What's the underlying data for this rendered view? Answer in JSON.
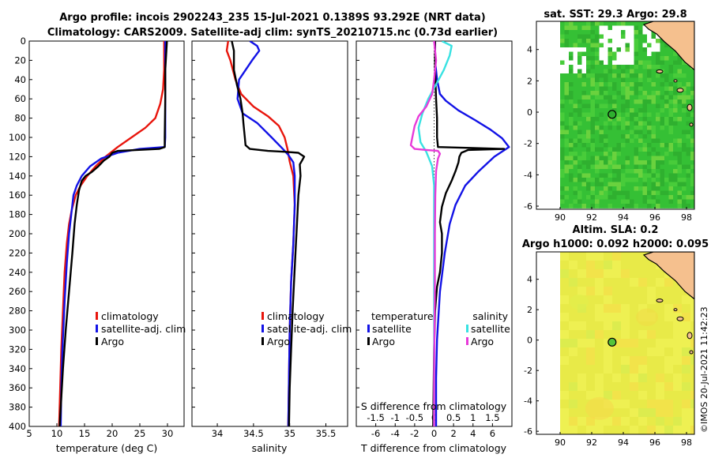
{
  "colors": {
    "climatology": "#e8150c",
    "satellite": "#1212e6",
    "argo": "#000000",
    "sal_satellite": "#38e2e2",
    "sal_argo": "#e83ad9",
    "land": "#f5c08e",
    "sst_field": "#3cc43c",
    "sla_field": "#ecee4a"
  },
  "header": {
    "line1": "Argo profile: incois 2902243_235 15-Jul-2021 0.1389S 93.292E (NRT data)",
    "line2": "Climatology: CARS2009. Satellite-adj clim: synTS_20210715.nc (0.73d earlier)"
  },
  "credit": "©IMOS 20-Jul-2021 11:42:23",
  "chart_data": [
    {
      "type": "line",
      "name": "temperature-profile",
      "xlabel": "temperature (deg C)",
      "ylabel": "",
      "xlim": [
        5,
        33
      ],
      "ylim": [
        400,
        0
      ],
      "xticks": [
        5,
        10,
        15,
        20,
        25,
        30
      ],
      "yticks": [
        0,
        20,
        40,
        60,
        80,
        100,
        120,
        140,
        160,
        180,
        200,
        220,
        240,
        260,
        280,
        300,
        320,
        340,
        360,
        380,
        400
      ],
      "legend": [
        "climatology",
        "satellite-adj. clim",
        "Argo"
      ],
      "legend_position": "lower-right",
      "series": [
        {
          "name": "climatology",
          "color_key": "climatology",
          "points": [
            [
              29.4,
              0
            ],
            [
              29.4,
              30
            ],
            [
              29.2,
              50
            ],
            [
              28.7,
              65
            ],
            [
              27.8,
              80
            ],
            [
              26,
              90
            ],
            [
              23.5,
              100
            ],
            [
              21,
              110
            ],
            [
              18.8,
              120
            ],
            [
              17,
              130
            ],
            [
              15.5,
              140
            ],
            [
              14.3,
              150
            ],
            [
              13.4,
              160
            ],
            [
              12.7,
              175
            ],
            [
              12.2,
              190
            ],
            [
              11.8,
              210
            ],
            [
              11.4,
              240
            ],
            [
              11.1,
              280
            ],
            [
              10.8,
              320
            ],
            [
              10.6,
              360
            ],
            [
              10.4,
              400
            ]
          ]
        },
        {
          "name": "satellite-adj. clim",
          "color_key": "satellite",
          "points": [
            [
              29.6,
              0
            ],
            [
              29.6,
              50
            ],
            [
              29.6,
              100
            ],
            [
              29.5,
              110
            ],
            [
              25,
              112
            ],
            [
              21,
              116
            ],
            [
              18,
              122
            ],
            [
              16,
              130
            ],
            [
              14.5,
              140
            ],
            [
              13.6,
              150
            ],
            [
              13,
              160
            ],
            [
              12.6,
              180
            ],
            [
              12.2,
              200
            ],
            [
              11.8,
              230
            ],
            [
              11.4,
              270
            ],
            [
              11,
              320
            ],
            [
              10.8,
              360
            ],
            [
              10.7,
              400
            ]
          ]
        },
        {
          "name": "Argo",
          "color_key": "argo",
          "points": [
            [
              29.9,
              0
            ],
            [
              29.8,
              10
            ],
            [
              29.6,
              30
            ],
            [
              29.6,
              60
            ],
            [
              29.5,
              100
            ],
            [
              29.5,
              110
            ],
            [
              28.5,
              112
            ],
            [
              24.5,
              113
            ],
            [
              21,
              114
            ],
            [
              20,
              116
            ],
            [
              19.5,
              120
            ],
            [
              18.5,
              124
            ],
            [
              17.5,
              130
            ],
            [
              16.3,
              136
            ],
            [
              15.2,
              140
            ],
            [
              14.5,
              145
            ],
            [
              14,
              155
            ],
            [
              13.6,
              170
            ],
            [
              13.2,
              190
            ],
            [
              12.8,
              220
            ],
            [
              12.2,
              260
            ],
            [
              11.6,
              300
            ],
            [
              11.1,
              340
            ],
            [
              10.8,
              370
            ],
            [
              10.5,
              400
            ]
          ]
        }
      ]
    },
    {
      "type": "line",
      "name": "salinity-profile",
      "xlabel": "salinity",
      "ylabel": "",
      "xlim": [
        33.65,
        35.8
      ],
      "ylim": [
        400,
        0
      ],
      "xticks": [
        34,
        34.5,
        35,
        35.5
      ],
      "legend": [
        "climatology",
        "satellite-adj. clim",
        "Argo"
      ],
      "legend_position": "lower-right",
      "series": [
        {
          "name": "climatology",
          "color_key": "climatology",
          "points": [
            [
              34.15,
              0
            ],
            [
              34.13,
              10
            ],
            [
              34.18,
              20
            ],
            [
              34.25,
              40
            ],
            [
              34.33,
              55
            ],
            [
              34.5,
              68
            ],
            [
              34.7,
              78
            ],
            [
              34.85,
              88
            ],
            [
              34.93,
              100
            ],
            [
              34.97,
              112
            ],
            [
              35,
              125
            ],
            [
              35.05,
              140
            ],
            [
              35.07,
              170
            ],
            [
              35.05,
              210
            ],
            [
              35.02,
              250
            ],
            [
              35,
              300
            ],
            [
              34.99,
              350
            ],
            [
              34.98,
              400
            ]
          ]
        },
        {
          "name": "satellite-adj. clim",
          "color_key": "satellite",
          "points": [
            [
              34.45,
              0
            ],
            [
              34.55,
              5
            ],
            [
              34.58,
              10
            ],
            [
              34.48,
              20
            ],
            [
              34.3,
              40
            ],
            [
              34.28,
              60
            ],
            [
              34.35,
              75
            ],
            [
              34.55,
              85
            ],
            [
              34.75,
              100
            ],
            [
              34.88,
              110
            ],
            [
              34.98,
              118
            ],
            [
              35.05,
              126
            ],
            [
              35.07,
              140
            ],
            [
              35.07,
              170
            ],
            [
              35.05,
              210
            ],
            [
              35.02,
              250
            ],
            [
              35,
              300
            ],
            [
              34.99,
              350
            ],
            [
              34.98,
              400
            ]
          ]
        },
        {
          "name": "Argo",
          "color_key": "argo",
          "points": [
            [
              34.2,
              0
            ],
            [
              34.23,
              10
            ],
            [
              34.23,
              30
            ],
            [
              34.27,
              45
            ],
            [
              34.32,
              60
            ],
            [
              34.35,
              75
            ],
            [
              34.36,
              85
            ],
            [
              34.38,
              100
            ],
            [
              34.39,
              108
            ],
            [
              34.45,
              112
            ],
            [
              34.7,
              114
            ],
            [
              34.95,
              115
            ],
            [
              35.12,
              116
            ],
            [
              35.2,
              120
            ],
            [
              35.17,
              124
            ],
            [
              35.14,
              128
            ],
            [
              35.15,
              140
            ],
            [
              35.12,
              160
            ],
            [
              35.1,
              190
            ],
            [
              35.08,
              220
            ],
            [
              35.06,
              250
            ],
            [
              35.04,
              280
            ],
            [
              35.02,
              320
            ],
            [
              35,
              360
            ],
            [
              34.99,
              400
            ]
          ]
        }
      ]
    },
    {
      "type": "line",
      "name": "difference-profile",
      "xlabel": "T difference from climatology",
      "x2label": "S difference from climatology",
      "xlim": [
        -8,
        8
      ],
      "x2lim": [
        -2,
        2
      ],
      "ylim": [
        400,
        0
      ],
      "xticks": [
        -6,
        -4,
        -2,
        0,
        2,
        4,
        6
      ],
      "x2ticks": [
        -1.5,
        -1,
        -0.5,
        0,
        0.5,
        1,
        1.5
      ],
      "legend_temperature_title": "temperature",
      "legend_salinity_title": "salinity",
      "legend_temperature": [
        "satellite",
        "Argo"
      ],
      "legend_salinity": [
        "satellite",
        "Argo"
      ],
      "zero_line": "dotted",
      "series": [
        {
          "name": "temperature satellite",
          "axis": "T",
          "color_key": "satellite",
          "points": [
            [
              0.1,
              0
            ],
            [
              0.1,
              20
            ],
            [
              0.3,
              40
            ],
            [
              0.6,
              55
            ],
            [
              1.2,
              62
            ],
            [
              2.5,
              72
            ],
            [
              4.2,
              82
            ],
            [
              5.8,
              92
            ],
            [
              7,
              101
            ],
            [
              7.7,
              110
            ],
            [
              6.2,
              120
            ],
            [
              4.6,
              135
            ],
            [
              3.2,
              150
            ],
            [
              2.2,
              170
            ],
            [
              1.6,
              190
            ],
            [
              1.1,
              220
            ],
            [
              0.6,
              260
            ],
            [
              0.3,
              310
            ],
            [
              0.2,
              350
            ],
            [
              0.2,
              400
            ]
          ]
        },
        {
          "name": "temperature Argo",
          "axis": "T",
          "color_key": "argo",
          "points": [
            [
              0.1,
              0
            ],
            [
              0.1,
              30
            ],
            [
              0.2,
              60
            ],
            [
              0.3,
              80
            ],
            [
              0.3,
              100
            ],
            [
              0.4,
              110
            ],
            [
              4,
              111
            ],
            [
              7.2,
              112
            ],
            [
              3.5,
              113
            ],
            [
              2.8,
              116
            ],
            [
              2.6,
              120
            ],
            [
              2.5,
              126
            ],
            [
              2.2,
              135
            ],
            [
              1.8,
              145
            ],
            [
              1.2,
              158
            ],
            [
              0.8,
              172
            ],
            [
              0.6,
              188
            ],
            [
              0.8,
              200
            ],
            [
              0.8,
              220
            ],
            [
              0.6,
              240
            ],
            [
              0.3,
              255
            ],
            [
              0.1,
              280
            ],
            [
              0,
              320
            ],
            [
              -0.05,
              360
            ],
            [
              -0.1,
              400
            ]
          ]
        },
        {
          "name": "salinity satellite",
          "axis": "S",
          "color_key": "sal_satellite",
          "points": [
            [
              0.2,
              0
            ],
            [
              0.45,
              5
            ],
            [
              0.4,
              15
            ],
            [
              0.25,
              30
            ],
            [
              0.05,
              45
            ],
            [
              -0.15,
              60
            ],
            [
              -0.3,
              75
            ],
            [
              -0.4,
              90
            ],
            [
              -0.35,
              105
            ],
            [
              -0.2,
              115
            ],
            [
              -0.05,
              130
            ],
            [
              0,
              150
            ],
            [
              0,
              200
            ],
            [
              0,
              300
            ],
            [
              0,
              400
            ]
          ]
        },
        {
          "name": "salinity Argo",
          "axis": "S",
          "color_key": "sal_argo",
          "points": [
            [
              0,
              0
            ],
            [
              0.05,
              20
            ],
            [
              0,
              40
            ],
            [
              -0.05,
              55
            ],
            [
              -0.2,
              68
            ],
            [
              -0.4,
              78
            ],
            [
              -0.5,
              88
            ],
            [
              -0.55,
              98
            ],
            [
              -0.6,
              108
            ],
            [
              -0.5,
              112
            ],
            [
              -0.2,
              113
            ],
            [
              0.1,
              114
            ],
            [
              0.15,
              117
            ],
            [
              0.1,
              122
            ],
            [
              0.05,
              135
            ],
            [
              0.03,
              160
            ],
            [
              0.02,
              200
            ],
            [
              0.02,
              250
            ],
            [
              0.01,
              300
            ],
            [
              0,
              350
            ],
            [
              0,
              400
            ]
          ]
        }
      ]
    },
    {
      "type": "heatmap",
      "name": "sst-map",
      "title": "sat. SST: 29.3 Argo: 29.8",
      "xlim": [
        88.5,
        98.5
      ],
      "ylim": [
        -6.2,
        5.8
      ],
      "xticks": [
        90,
        92,
        94,
        96,
        98
      ],
      "yticks": [
        -6,
        -4,
        -2,
        0,
        2,
        4
      ],
      "argo_position": [
        93.292,
        -0.1389
      ]
    },
    {
      "type": "heatmap",
      "name": "sla-map",
      "title_line1": "Altim. SLA: 0.2",
      "title_line2": "Argo h1000: 0.092 h2000: 0.095",
      "xlim": [
        88.5,
        98.5
      ],
      "ylim": [
        -6.2,
        5.8
      ],
      "xticks": [
        90,
        92,
        94,
        96,
        98
      ],
      "yticks": [
        -6,
        -4,
        -2,
        0,
        2,
        4
      ],
      "argo_position": [
        93.292,
        -0.1389
      ]
    }
  ]
}
